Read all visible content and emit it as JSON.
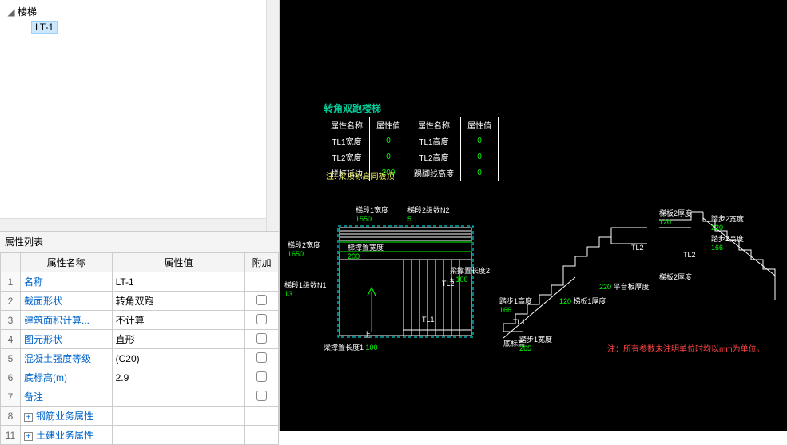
{
  "tree": {
    "root_label": "楼梯",
    "child_label": "LT-1"
  },
  "prop_header": "属性列表",
  "prop_columns": [
    "属性名称",
    "属性值",
    "附加"
  ],
  "props": [
    {
      "n": "1",
      "name": "名称",
      "val": "LT-1",
      "cb": false
    },
    {
      "n": "2",
      "name": "截面形状",
      "val": "转角双跑",
      "cb": true
    },
    {
      "n": "3",
      "name": "建筑面积计算...",
      "val": "不计算",
      "cb": true
    },
    {
      "n": "4",
      "name": "图元形状",
      "val": "直形",
      "cb": true
    },
    {
      "n": "5",
      "name": "混凝土强度等级",
      "val": "(C20)",
      "cb": true
    },
    {
      "n": "6",
      "name": "底标高(m)",
      "val": "2.9",
      "cb": true
    },
    {
      "n": "7",
      "name": "备注",
      "val": "",
      "cb": true
    },
    {
      "n": "8",
      "name": "钢筋业务属性",
      "val": "",
      "exp": true
    },
    {
      "n": "11",
      "name": "土建业务属性",
      "val": "",
      "exp": true
    }
  ],
  "cad": {
    "title": "转角双跑楼梯",
    "table": {
      "rows": [
        [
          "属性名称",
          "属性值",
          "属性名称",
          "属性值"
        ],
        [
          "TL1宽度",
          "0",
          "TL1高度",
          "0"
        ],
        [
          "TL2宽度",
          "0",
          "TL2高度",
          "0"
        ],
        [
          "栏杆延边",
          "200",
          "踢脚线高度",
          "0"
        ]
      ]
    },
    "note1": "注: 梁顶标高同板顶",
    "note2": "注：所有参数未注明单位时均以mm为单位。",
    "dims": {
      "t1": "梯段1宽度",
      "v1": "1550",
      "t2": "梯段2级数N2",
      "v2": "5",
      "t3": "梯段2宽度",
      "v3": "1650",
      "t4": "梯撑置宽度",
      "v4": "200",
      "t5": "梯段1级数N1",
      "v5": "13",
      "t6": "梁撑置长度2",
      "v6": "100",
      "t7": "梁撑置长度1",
      "v7": "100",
      "t8": "上",
      "t9": "TL1",
      "t10": "TL2",
      "s1": "踏步1高度",
      "sv1": "166",
      "s2": "踏步1宽度",
      "sv2": "265",
      "s3": "梯板1厚度",
      "sv3": "120",
      "s4": "平台板厚度",
      "sv4": "220",
      "s5": "梯板2厚度",
      "sv5": "120",
      "s6": "踏步2宽度",
      "sv6": "220",
      "s7": "踏步2高度",
      "sv7": "166",
      "s8": "梯板2厚度",
      "s9": "底标高",
      "s10": "TL1",
      "s11": "TL2"
    },
    "colors": {
      "line": "#ffffff",
      "dash": "#00ffff",
      "green": "#00ff00"
    }
  }
}
